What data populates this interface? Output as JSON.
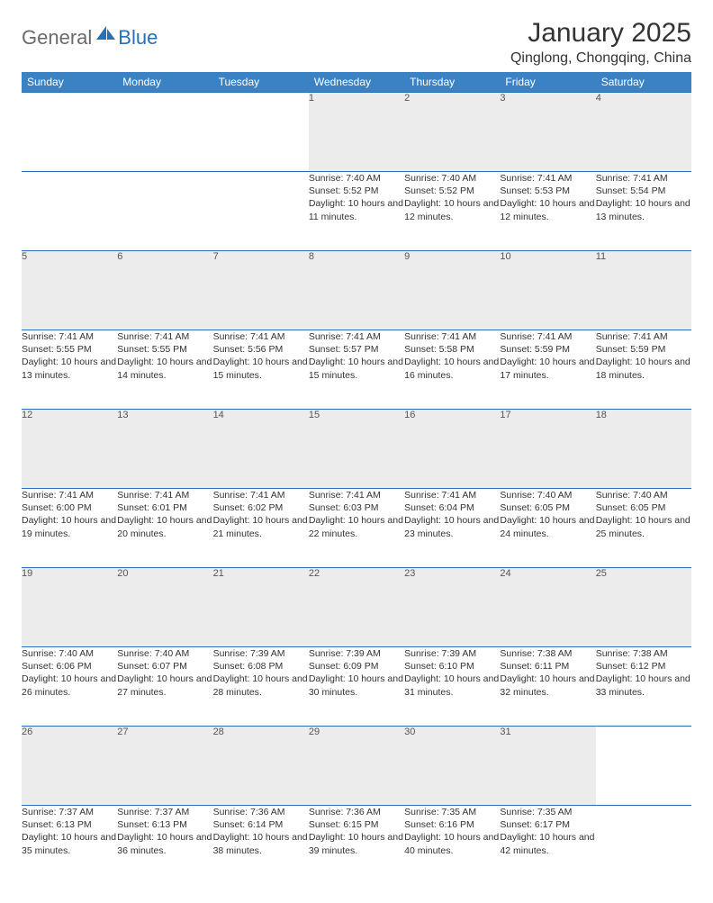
{
  "brand": {
    "part1": "General",
    "part2": "Blue"
  },
  "title": "January 2025",
  "location": "Qinglong, Chongqing, China",
  "colors": {
    "header_bg": "#3b82c4",
    "header_text": "#ffffff",
    "daynum_bg": "#ececec",
    "border": "#2a6fb5",
    "brand_gray": "#6b6b6b",
    "brand_blue": "#2a6fb5"
  },
  "weekdays": [
    "Sunday",
    "Monday",
    "Tuesday",
    "Wednesday",
    "Thursday",
    "Friday",
    "Saturday"
  ],
  "weeks": [
    [
      null,
      null,
      null,
      {
        "d": "1",
        "sr": "7:40 AM",
        "ss": "5:52 PM",
        "dl": "10 hours and 11 minutes."
      },
      {
        "d": "2",
        "sr": "7:40 AM",
        "ss": "5:52 PM",
        "dl": "10 hours and 12 minutes."
      },
      {
        "d": "3",
        "sr": "7:41 AM",
        "ss": "5:53 PM",
        "dl": "10 hours and 12 minutes."
      },
      {
        "d": "4",
        "sr": "7:41 AM",
        "ss": "5:54 PM",
        "dl": "10 hours and 13 minutes."
      }
    ],
    [
      {
        "d": "5",
        "sr": "7:41 AM",
        "ss": "5:55 PM",
        "dl": "10 hours and 13 minutes."
      },
      {
        "d": "6",
        "sr": "7:41 AM",
        "ss": "5:55 PM",
        "dl": "10 hours and 14 minutes."
      },
      {
        "d": "7",
        "sr": "7:41 AM",
        "ss": "5:56 PM",
        "dl": "10 hours and 15 minutes."
      },
      {
        "d": "8",
        "sr": "7:41 AM",
        "ss": "5:57 PM",
        "dl": "10 hours and 15 minutes."
      },
      {
        "d": "9",
        "sr": "7:41 AM",
        "ss": "5:58 PM",
        "dl": "10 hours and 16 minutes."
      },
      {
        "d": "10",
        "sr": "7:41 AM",
        "ss": "5:59 PM",
        "dl": "10 hours and 17 minutes."
      },
      {
        "d": "11",
        "sr": "7:41 AM",
        "ss": "5:59 PM",
        "dl": "10 hours and 18 minutes."
      }
    ],
    [
      {
        "d": "12",
        "sr": "7:41 AM",
        "ss": "6:00 PM",
        "dl": "10 hours and 19 minutes."
      },
      {
        "d": "13",
        "sr": "7:41 AM",
        "ss": "6:01 PM",
        "dl": "10 hours and 20 minutes."
      },
      {
        "d": "14",
        "sr": "7:41 AM",
        "ss": "6:02 PM",
        "dl": "10 hours and 21 minutes."
      },
      {
        "d": "15",
        "sr": "7:41 AM",
        "ss": "6:03 PM",
        "dl": "10 hours and 22 minutes."
      },
      {
        "d": "16",
        "sr": "7:41 AM",
        "ss": "6:04 PM",
        "dl": "10 hours and 23 minutes."
      },
      {
        "d": "17",
        "sr": "7:40 AM",
        "ss": "6:05 PM",
        "dl": "10 hours and 24 minutes."
      },
      {
        "d": "18",
        "sr": "7:40 AM",
        "ss": "6:05 PM",
        "dl": "10 hours and 25 minutes."
      }
    ],
    [
      {
        "d": "19",
        "sr": "7:40 AM",
        "ss": "6:06 PM",
        "dl": "10 hours and 26 minutes."
      },
      {
        "d": "20",
        "sr": "7:40 AM",
        "ss": "6:07 PM",
        "dl": "10 hours and 27 minutes."
      },
      {
        "d": "21",
        "sr": "7:39 AM",
        "ss": "6:08 PM",
        "dl": "10 hours and 28 minutes."
      },
      {
        "d": "22",
        "sr": "7:39 AM",
        "ss": "6:09 PM",
        "dl": "10 hours and 30 minutes."
      },
      {
        "d": "23",
        "sr": "7:39 AM",
        "ss": "6:10 PM",
        "dl": "10 hours and 31 minutes."
      },
      {
        "d": "24",
        "sr": "7:38 AM",
        "ss": "6:11 PM",
        "dl": "10 hours and 32 minutes."
      },
      {
        "d": "25",
        "sr": "7:38 AM",
        "ss": "6:12 PM",
        "dl": "10 hours and 33 minutes."
      }
    ],
    [
      {
        "d": "26",
        "sr": "7:37 AM",
        "ss": "6:13 PM",
        "dl": "10 hours and 35 minutes."
      },
      {
        "d": "27",
        "sr": "7:37 AM",
        "ss": "6:13 PM",
        "dl": "10 hours and 36 minutes."
      },
      {
        "d": "28",
        "sr": "7:36 AM",
        "ss": "6:14 PM",
        "dl": "10 hours and 38 minutes."
      },
      {
        "d": "29",
        "sr": "7:36 AM",
        "ss": "6:15 PM",
        "dl": "10 hours and 39 minutes."
      },
      {
        "d": "30",
        "sr": "7:35 AM",
        "ss": "6:16 PM",
        "dl": "10 hours and 40 minutes."
      },
      {
        "d": "31",
        "sr": "7:35 AM",
        "ss": "6:17 PM",
        "dl": "10 hours and 42 minutes."
      },
      null
    ]
  ],
  "labels": {
    "sunrise": "Sunrise:",
    "sunset": "Sunset:",
    "daylight": "Daylight:"
  }
}
